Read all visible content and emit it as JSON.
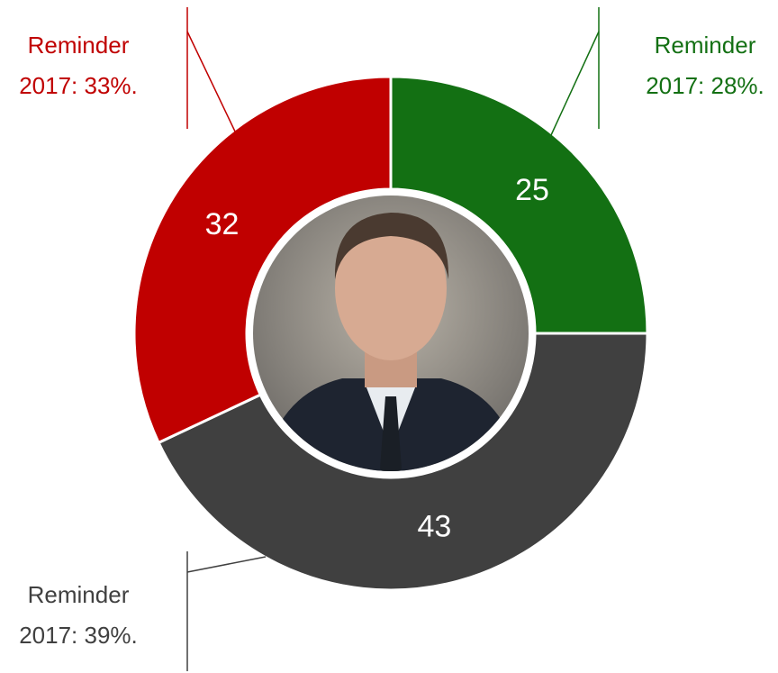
{
  "chart_data": {
    "type": "donut",
    "values": [
      25,
      43,
      32
    ],
    "colors": [
      "#137013",
      "#404040",
      "#c00000"
    ],
    "annotations": [
      {
        "lines": [
          "Reminder",
          "2017: 28%."
        ],
        "color": "#137013"
      },
      {
        "lines": [
          "Reminder",
          "2017: 39%."
        ],
        "color": "#404040"
      },
      {
        "lines": [
          "Reminder",
          "2017: 33%."
        ],
        "color": "#c00000"
      }
    ]
  }
}
